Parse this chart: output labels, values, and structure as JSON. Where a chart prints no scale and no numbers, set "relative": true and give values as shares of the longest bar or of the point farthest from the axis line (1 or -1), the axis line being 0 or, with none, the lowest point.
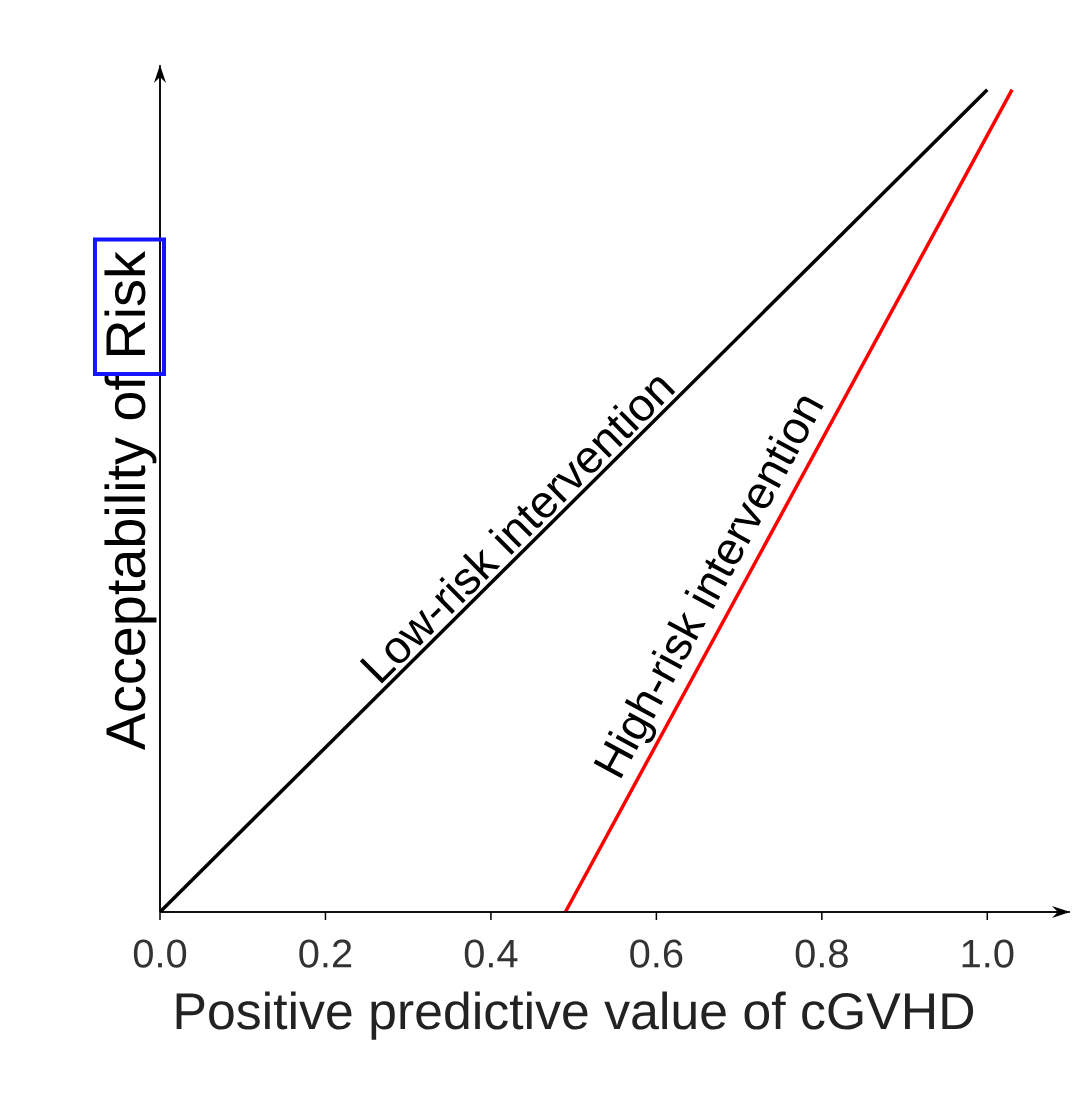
{
  "chart_data": {
    "type": "line",
    "xlabel": "Positive predictive value of cGVHD",
    "ylabel": "Acceptability of Risk",
    "relative": true,
    "xlim": [
      0,
      1.1
    ],
    "xticks": [
      {
        "value": 0,
        "label": "0.0"
      },
      {
        "value": 0.2,
        "label": "0.2"
      },
      {
        "value": 0.4,
        "label": "0.4"
      },
      {
        "value": 0.6,
        "label": "0.6"
      },
      {
        "value": 0.8,
        "label": "0.8"
      },
      {
        "value": 1.0,
        "label": "1.0"
      }
    ],
    "series": [
      {
        "name": "Low-risk intervention",
        "color": "#000000",
        "x": [
          0,
          1
        ],
        "values": [
          0,
          1
        ]
      },
      {
        "name": "High-risk intervention",
        "color": "#ff0000",
        "x": [
          0.49,
          1.03
        ],
        "values": [
          0,
          1
        ]
      }
    ]
  }
}
